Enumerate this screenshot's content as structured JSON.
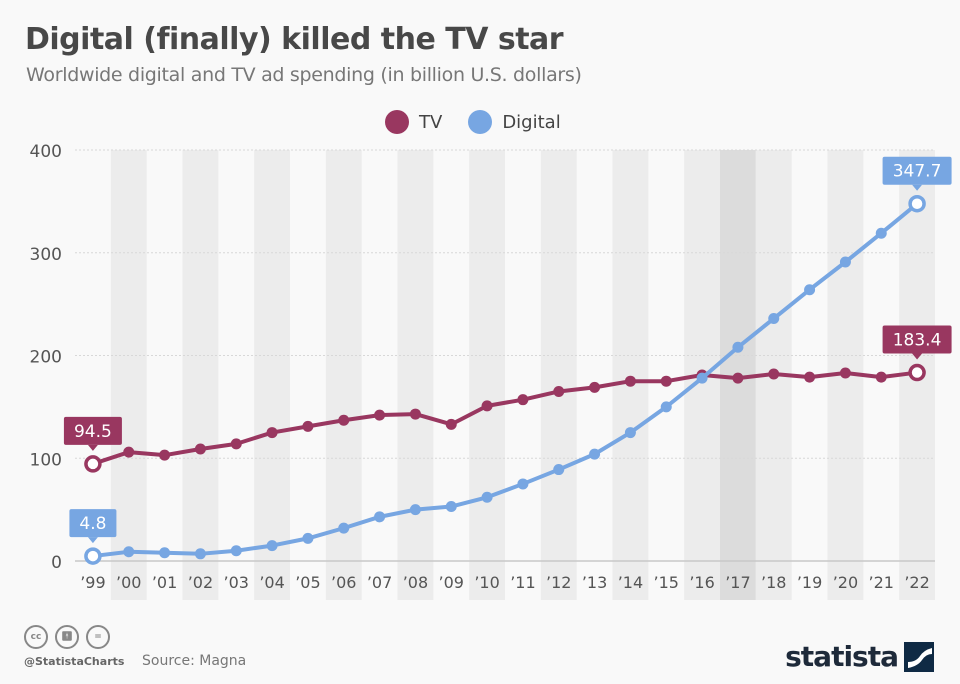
{
  "header": {
    "title": "Digital (finally) killed the TV star",
    "subtitle": "Worldwide digital and TV ad spending (in billion U.S. dollars)"
  },
  "legend": [
    {
      "label": "TV",
      "color": "#993760"
    },
    {
      "label": "Digital",
      "color": "#77a6e2"
    }
  ],
  "footer": {
    "handle": "@StatistaCharts",
    "source": "Source: Magna",
    "logo": "statista",
    "license_icons": [
      "cc-icon",
      "attribution-icon",
      "no-derivatives-icon"
    ]
  },
  "chart_data": {
    "type": "line",
    "title": "Digital (finally) killed the TV star",
    "subtitle": "Worldwide digital and TV ad spending (in billion U.S. dollars)",
    "xlabel": "",
    "ylabel": "",
    "ylim": [
      0,
      400
    ],
    "yticks": [
      0,
      100,
      200,
      300,
      400
    ],
    "grid": true,
    "legend_position": "top-center",
    "categories": [
      "'99",
      "'00",
      "'01",
      "'02",
      "'03",
      "'04",
      "'05",
      "'06",
      "'07",
      "'08",
      "'09",
      "'10",
      "'11",
      "'12",
      "'13",
      "'14",
      "'15",
      "'16",
      "'17",
      "'18",
      "'19",
      "'20",
      "'21",
      "'22"
    ],
    "highlighted_category": "'17",
    "series": [
      {
        "name": "TV",
        "color": "#993760",
        "values": [
          94.5,
          106,
          103,
          109,
          114,
          125,
          131,
          137,
          142,
          143,
          133,
          151,
          157,
          165,
          169,
          175,
          175,
          181,
          178,
          182,
          179,
          183,
          179,
          183.4
        ],
        "labels": {
          "0": "94.5",
          "23": "183.4"
        }
      },
      {
        "name": "Digital",
        "color": "#77a6e2",
        "values": [
          4.8,
          9,
          8,
          7,
          10,
          15,
          22,
          32,
          43,
          50,
          53,
          62,
          75,
          89,
          104,
          125,
          150,
          178,
          208,
          236,
          264,
          291,
          319,
          347.7
        ],
        "labels": {
          "0": "4.8",
          "23": "347.7"
        }
      }
    ]
  }
}
